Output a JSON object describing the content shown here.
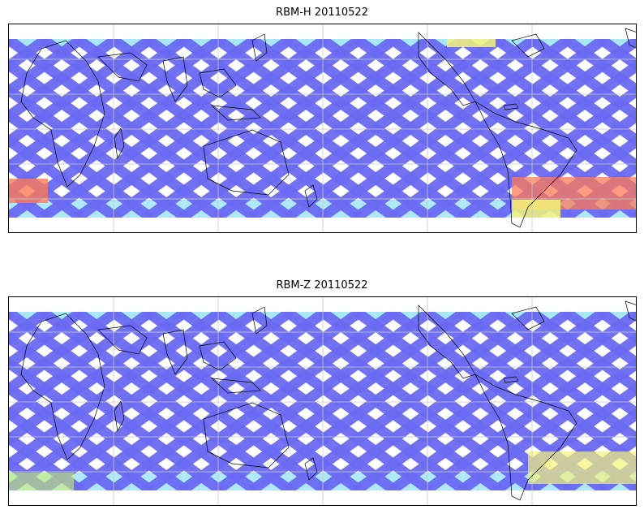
{
  "panels": [
    {
      "title": "RBM-H 20110522",
      "swath_color": "#6a6af2",
      "hot_color": "#ff7a55",
      "warm_color": "#f4f47a",
      "cool_color": "#5fd3f0"
    },
    {
      "title": "RBM-Z 20110522",
      "swath_color": "#6a6af2",
      "hot_color": "#f4f47a",
      "warm_color": "#c8f070",
      "cool_color": "#5fd3f0"
    }
  ]
}
